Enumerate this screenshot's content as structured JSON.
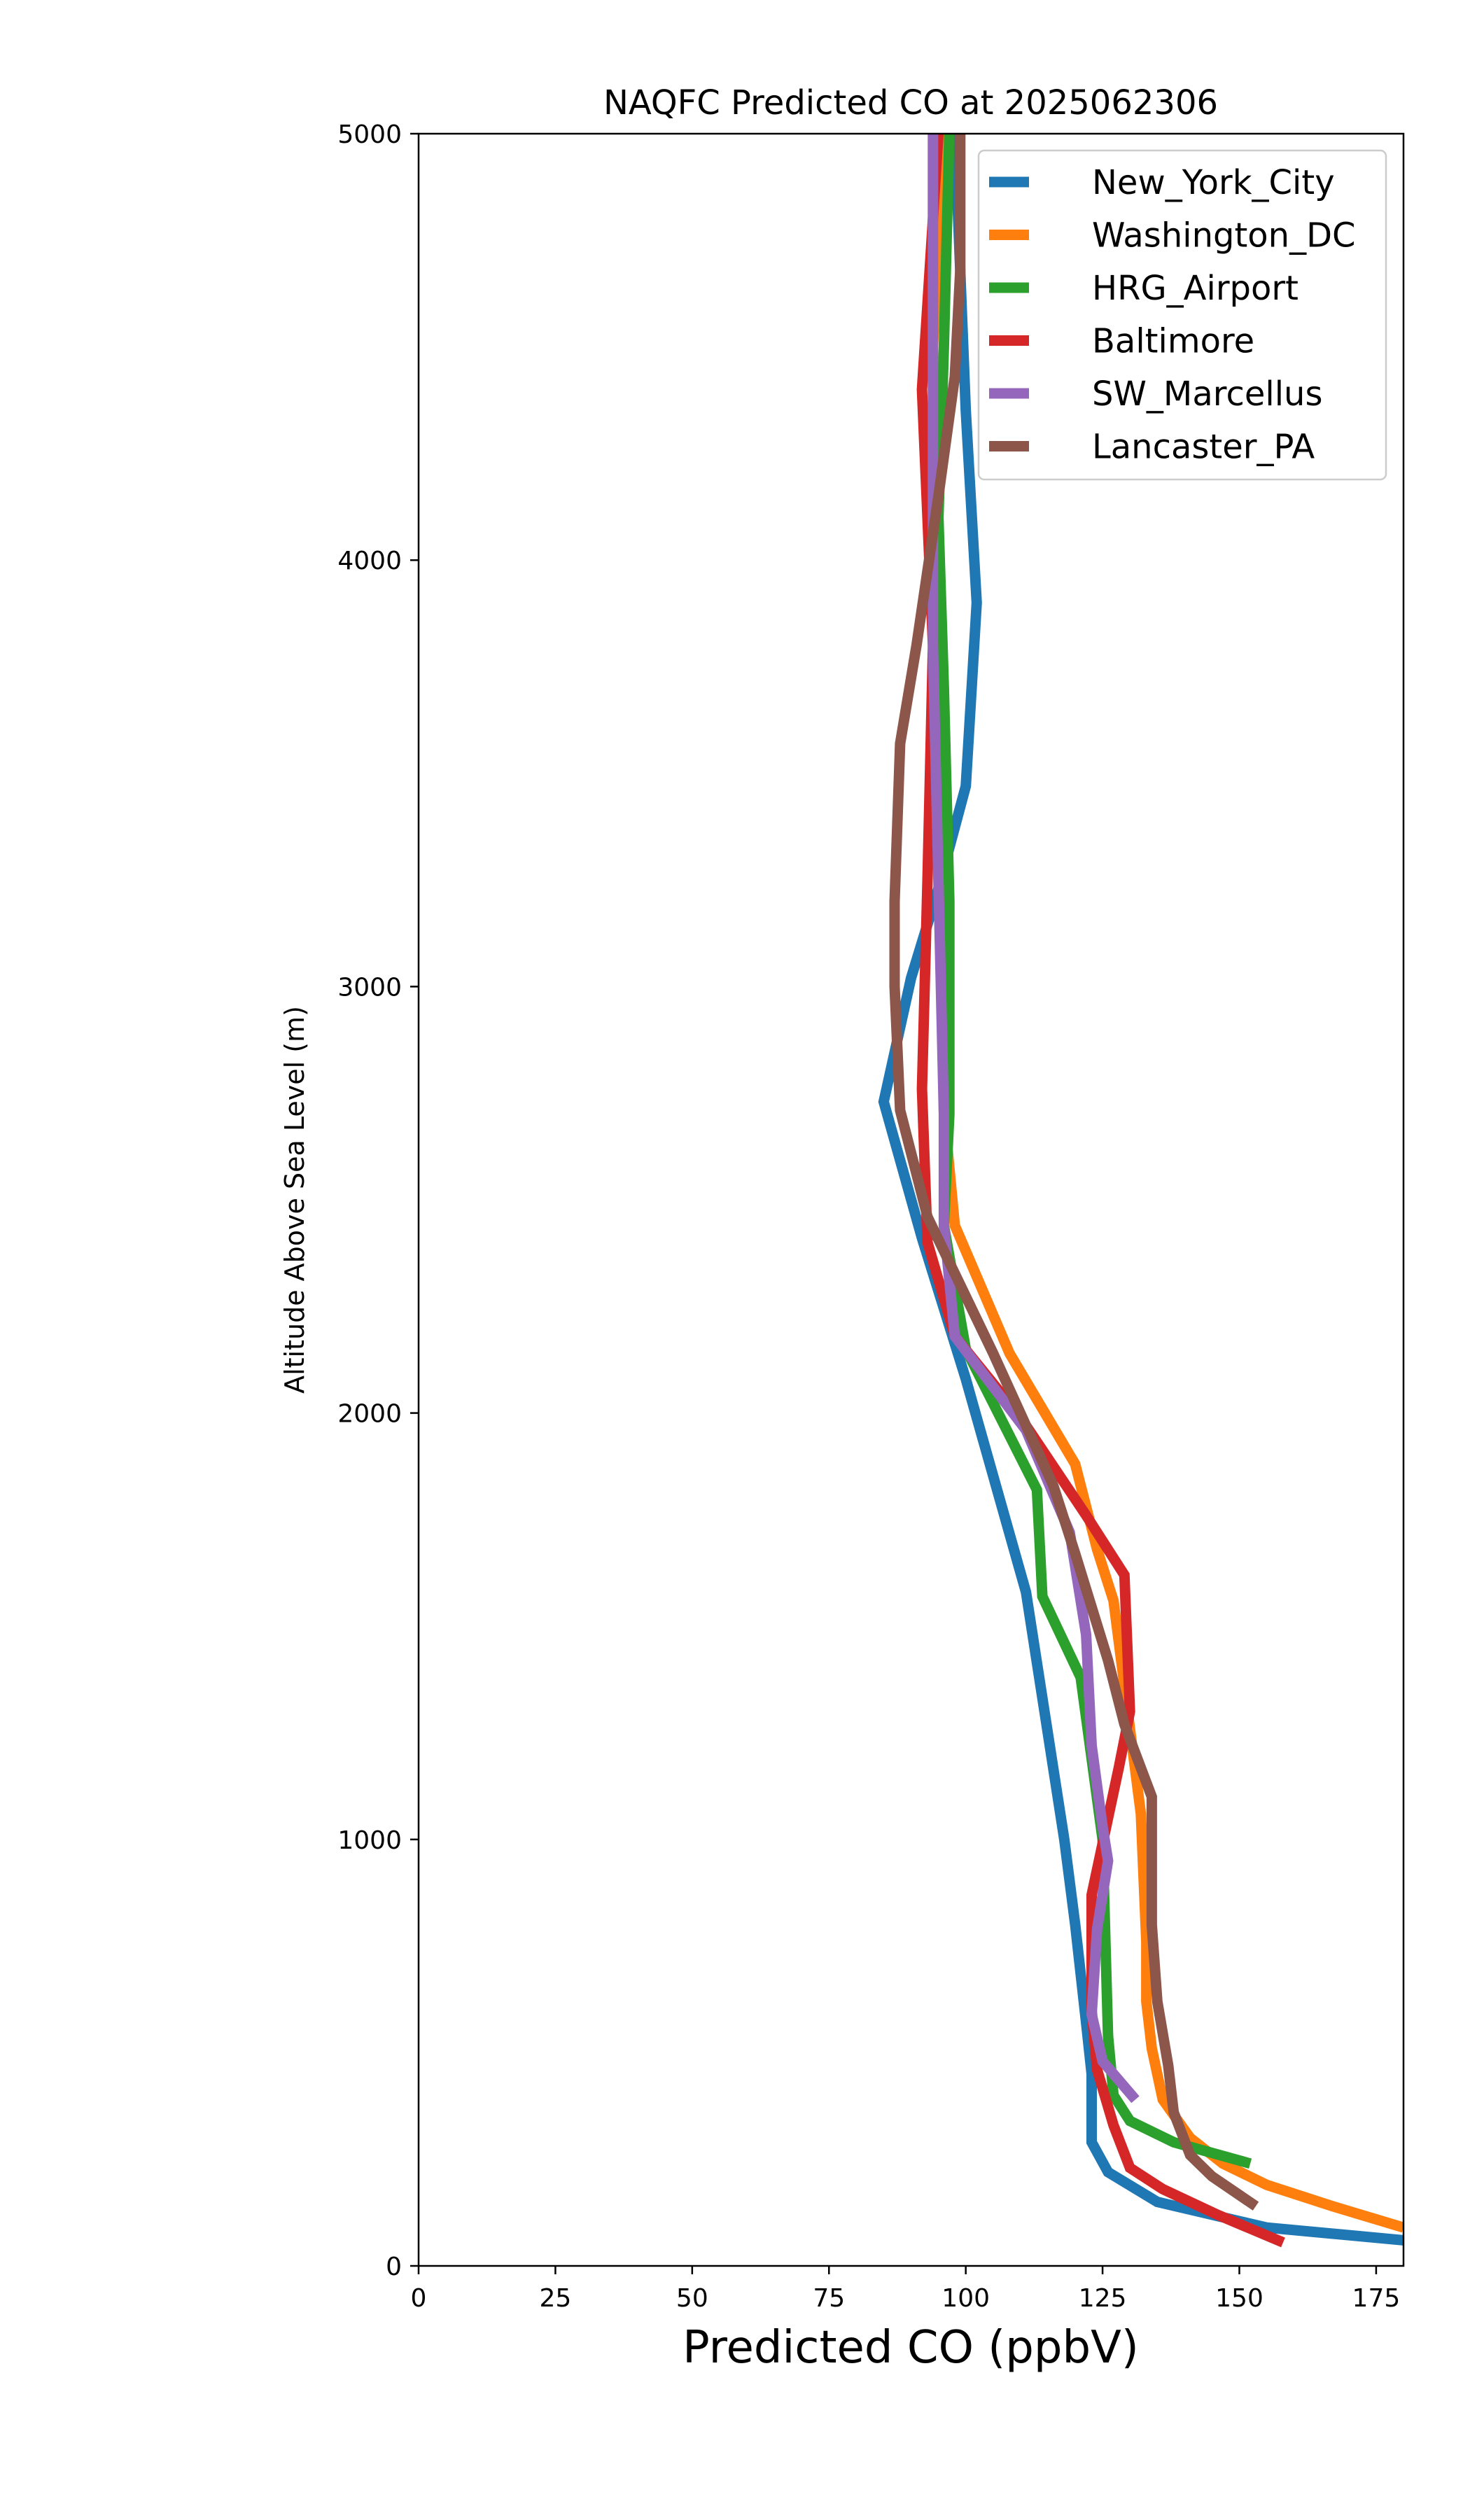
{
  "chart_data": {
    "type": "line",
    "title": "NAQFC Predicted CO at 2025062306",
    "xlabel": "Predicted CO (ppbV)",
    "ylabel": "Altitude Above Sea Level (m)",
    "xlim": [
      0,
      180
    ],
    "ylim": [
      0,
      5000
    ],
    "x_ticks": [
      0,
      25,
      50,
      75,
      100,
      125,
      150,
      175
    ],
    "y_ticks": [
      0,
      1000,
      2000,
      3000,
      4000,
      5000
    ],
    "legend_position": "top-right",
    "grid": false,
    "series": [
      {
        "name": "New_York_City",
        "color": "#1f77b4",
        "points": [
          [
            180,
            60
          ],
          [
            155,
            90
          ],
          [
            135,
            150
          ],
          [
            126,
            220
          ],
          [
            123,
            290
          ],
          [
            123,
            450
          ],
          [
            122,
            570
          ],
          [
            120,
            800
          ],
          [
            118,
            1000
          ],
          [
            111,
            1580
          ],
          [
            100,
            2080
          ],
          [
            92,
            2410
          ],
          [
            85,
            2730
          ],
          [
            90,
            3020
          ],
          [
            95,
            3230
          ],
          [
            100,
            3470
          ],
          [
            102,
            3900
          ],
          [
            100,
            4350
          ],
          [
            98,
            5000
          ]
        ]
      },
      {
        "name": "Washington_DC",
        "color": "#ff7f0e",
        "points": [
          [
            180,
            90
          ],
          [
            167,
            140
          ],
          [
            155,
            190
          ],
          [
            147,
            240
          ],
          [
            141,
            300
          ],
          [
            136,
            390
          ],
          [
            134,
            510
          ],
          [
            133,
            620
          ],
          [
            133,
            760
          ],
          [
            132,
            1060
          ],
          [
            127,
            1560
          ],
          [
            124,
            1680
          ],
          [
            120,
            1880
          ],
          [
            108,
            2140
          ],
          [
            98,
            2440
          ],
          [
            96,
            2710
          ],
          [
            96,
            3000
          ],
          [
            95,
            3500
          ],
          [
            94,
            4000
          ],
          [
            94,
            4500
          ],
          [
            96,
            5000
          ]
        ]
      },
      {
        "name": "HRG_Airport",
        "color": "#2ca02c",
        "points": [
          [
            152,
            240
          ],
          [
            138,
            290
          ],
          [
            130,
            340
          ],
          [
            127,
            400
          ],
          [
            126,
            540
          ],
          [
            125,
            1000
          ],
          [
            121,
            1380
          ],
          [
            114,
            1570
          ],
          [
            113,
            1820
          ],
          [
            100,
            2150
          ],
          [
            96,
            2440
          ],
          [
            97,
            2700
          ],
          [
            97,
            3200
          ],
          [
            96,
            3700
          ],
          [
            95,
            4100
          ],
          [
            96,
            4500
          ],
          [
            97,
            5000
          ]
        ]
      },
      {
        "name": "Baltimore",
        "color": "#d62728",
        "points": [
          [
            158,
            55
          ],
          [
            146,
            120
          ],
          [
            136,
            180
          ],
          [
            130,
            230
          ],
          [
            127,
            330
          ],
          [
            124,
            460
          ],
          [
            123,
            600
          ],
          [
            123,
            870
          ],
          [
            128,
            1170
          ],
          [
            130,
            1300
          ],
          [
            129,
            1620
          ],
          [
            122,
            1760
          ],
          [
            110,
            1990
          ],
          [
            98,
            2180
          ],
          [
            93,
            2400
          ],
          [
            92,
            2760
          ],
          [
            93,
            3250
          ],
          [
            94,
            3800
          ],
          [
            92,
            4400
          ],
          [
            95,
            5000
          ]
        ]
      },
      {
        "name": "SW_Marcellus",
        "color": "#9467bd",
        "points": [
          [
            131,
            390
          ],
          [
            125,
            480
          ],
          [
            123,
            590
          ],
          [
            124,
            790
          ],
          [
            126,
            950
          ],
          [
            125,
            1030
          ],
          [
            123,
            1220
          ],
          [
            122,
            1480
          ],
          [
            119,
            1720
          ],
          [
            111,
            1960
          ],
          [
            98,
            2180
          ],
          [
            96,
            2440
          ],
          [
            96,
            2700
          ],
          [
            95,
            3250
          ],
          [
            94,
            3800
          ],
          [
            94,
            4400
          ],
          [
            94,
            5000
          ]
        ]
      },
      {
        "name": "Lancaster_PA",
        "color": "#8c564b",
        "points": [
          [
            153,
            140
          ],
          [
            145,
            210
          ],
          [
            141,
            260
          ],
          [
            138,
            360
          ],
          [
            137,
            470
          ],
          [
            135,
            620
          ],
          [
            134,
            800
          ],
          [
            134,
            950
          ],
          [
            134,
            1100
          ],
          [
            129,
            1270
          ],
          [
            126,
            1420
          ],
          [
            120,
            1670
          ],
          [
            116,
            1830
          ],
          [
            105,
            2140
          ],
          [
            93,
            2460
          ],
          [
            88,
            2710
          ],
          [
            87,
            3000
          ],
          [
            87,
            3200
          ],
          [
            88,
            3570
          ],
          [
            91,
            3800
          ],
          [
            95,
            4150
          ],
          [
            98,
            4430
          ],
          [
            99,
            4680
          ],
          [
            99,
            5000
          ]
        ]
      }
    ]
  }
}
